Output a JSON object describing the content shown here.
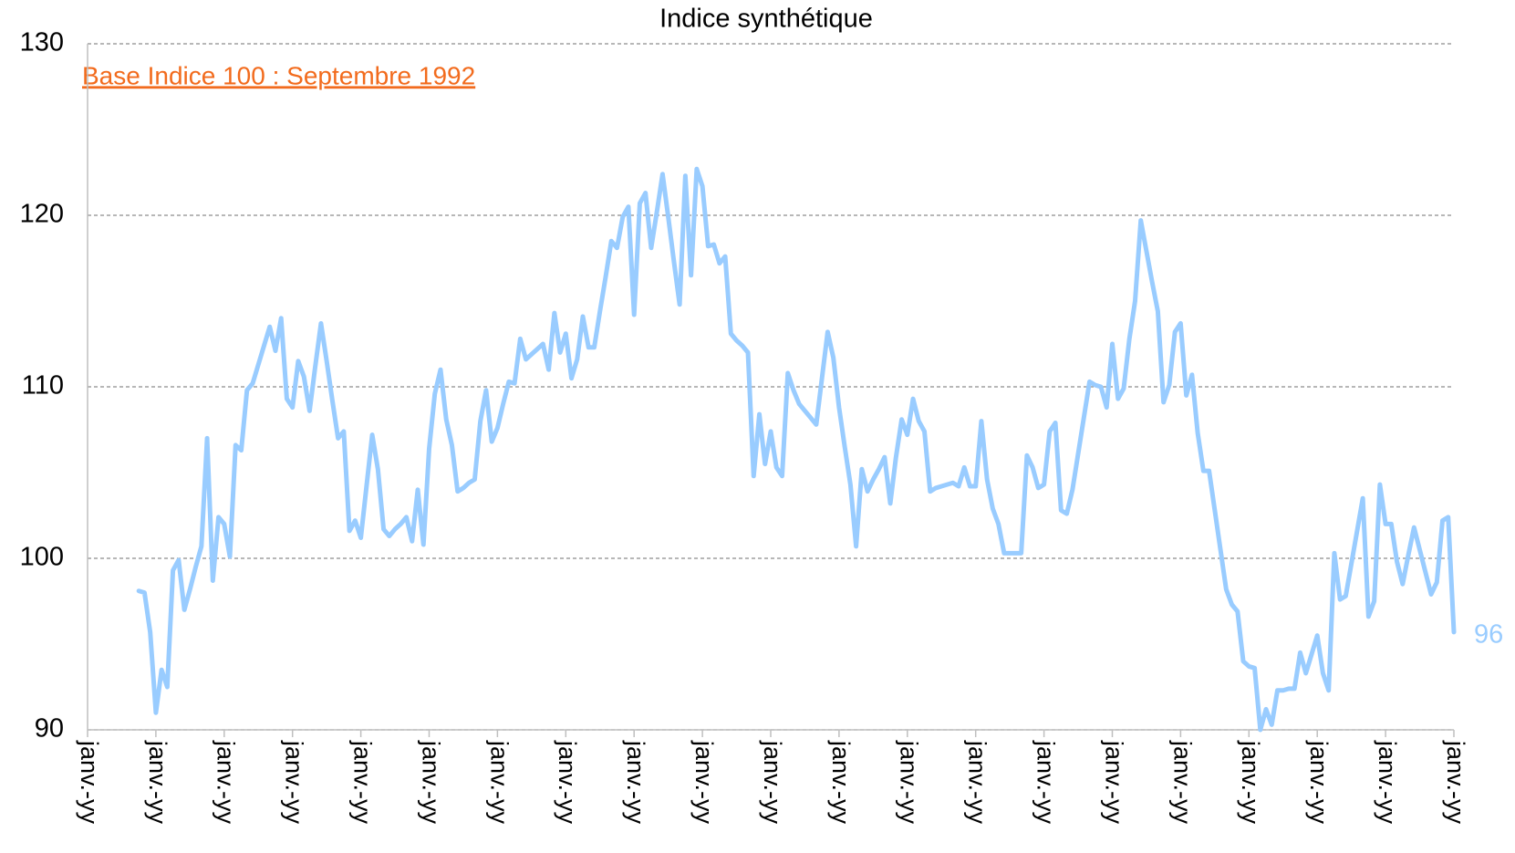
{
  "chart_data": {
    "type": "line",
    "title": "Indice synthétique",
    "annotation": "Base Indice 100 : Septembre 1992",
    "annotation_color": "#f26b1d",
    "ylim": [
      90,
      130
    ],
    "yticks": [
      90,
      100,
      110,
      120,
      130
    ],
    "grid": true,
    "categories": [
      "janv.-yy",
      null,
      null,
      null,
      null,
      null,
      null,
      null,
      null,
      null,
      null,
      null,
      "janv.-yy",
      null,
      null,
      null,
      null,
      null,
      null,
      null,
      null,
      null,
      null,
      null,
      "janv.-yy",
      null,
      null,
      null,
      null,
      null,
      null,
      null,
      null,
      null,
      null,
      null,
      "janv.-yy",
      null,
      null,
      null,
      null,
      null,
      null,
      null,
      null,
      null,
      null,
      null,
      "janv.-yy",
      null,
      null,
      null,
      null,
      null,
      null,
      null,
      null,
      null,
      null,
      null,
      "janv.-yy",
      null,
      null,
      null,
      null,
      null,
      null,
      null,
      null,
      null,
      null,
      null,
      "janv.-yy",
      null,
      null,
      null,
      null,
      null,
      null,
      null,
      null,
      null,
      null,
      null,
      "janv.-yy",
      null,
      null,
      null,
      null,
      null,
      null,
      null,
      null,
      null,
      null,
      null,
      "janv.-yy",
      null,
      null,
      null,
      null,
      null,
      null,
      null,
      null,
      null,
      null,
      null,
      "janv.-yy",
      null,
      null,
      null,
      null,
      null,
      null,
      null,
      null,
      null,
      null,
      null,
      "janv.-yy",
      null,
      null,
      null,
      null,
      null,
      null,
      null,
      null,
      null,
      null,
      null,
      "janv.-yy",
      null,
      null,
      null,
      null,
      null,
      null,
      null,
      null,
      null,
      null,
      null,
      "janv.-yy",
      null,
      null,
      null,
      null,
      null,
      null,
      null,
      null,
      null,
      null,
      null,
      "janv.-yy",
      null,
      null,
      null,
      null,
      null,
      null,
      null,
      null,
      null,
      null,
      null,
      "janv.-yy",
      null,
      null,
      null,
      null,
      null,
      null,
      null,
      null,
      null,
      null,
      null,
      "janv.-yy",
      null,
      null,
      null,
      null,
      null,
      null,
      null,
      null,
      null,
      null,
      null,
      "janv.-yy",
      null,
      null,
      null,
      null,
      null,
      null,
      null,
      null,
      null,
      null,
      null,
      "janv.-yy",
      null,
      null,
      null,
      null,
      null,
      null,
      null,
      null,
      null,
      null,
      null,
      "janv.-yy",
      null,
      null,
      null,
      null,
      null,
      null,
      null,
      null,
      null,
      null,
      null,
      "janv.-yy",
      null,
      null,
      null,
      null,
      null,
      null,
      null,
      null,
      null,
      null,
      null,
      "janv.-yy"
    ],
    "series": [
      {
        "color": "#99ccff",
        "values": [
          null,
          null,
          null,
          null,
          null,
          null,
          null,
          null,
          null,
          98.1,
          98,
          95.7,
          91,
          93.5,
          92.5,
          99.3,
          99.9,
          97,
          98.2,
          99.5,
          100.7,
          107,
          98.7,
          102.4,
          102,
          100.1,
          106.6,
          106.3,
          109.8,
          110.2,
          111.3,
          112.4,
          113.5,
          112.1,
          114,
          109.3,
          108.8,
          111.5,
          110.6,
          108.6,
          111.2,
          113.7,
          111.5,
          109.2,
          107,
          107.4,
          101.6,
          102.2,
          101.2,
          104.2,
          107.2,
          105.2,
          101.7,
          101.3,
          101.7,
          102,
          102.4,
          101,
          104,
          100.8,
          106.4,
          109.6,
          111,
          108.1,
          106.6,
          103.9,
          104.1,
          104.4,
          104.6,
          108,
          109.8,
          106.8,
          107.6,
          109,
          110.3,
          110.2,
          112.8,
          111.6,
          111.9,
          112.2,
          112.5,
          111,
          114.3,
          112,
          113.1,
          110.5,
          111.6,
          114.1,
          112.3,
          112.3,
          114.4,
          116.4,
          118.5,
          118.1,
          119.9,
          120.5,
          114.2,
          120.7,
          121.3,
          118.1,
          120.2,
          122.4,
          119.9,
          117.3,
          114.8,
          122.3,
          116.5,
          122.7,
          121.7,
          118.2,
          118.3,
          117.2,
          117.6,
          113.1,
          112.7,
          112.4,
          112,
          104.8,
          108.4,
          105.5,
          107.4,
          105.3,
          104.8,
          110.8,
          109.8,
          109,
          108.6,
          108.2,
          107.8,
          110.5,
          113.2,
          111.7,
          108.8,
          106.5,
          104.3,
          100.7,
          105.2,
          103.9,
          104.6,
          105.2,
          105.9,
          103.2,
          105.9,
          108.1,
          107.2,
          109.3,
          108,
          107.4,
          103.9,
          104.1,
          104.2,
          104.3,
          104.4,
          104.2,
          105.3,
          104.2,
          104.2,
          108,
          104.6,
          102.9,
          102,
          100.3,
          100.3,
          100.3,
          100.3,
          106,
          105.3,
          104.1,
          104.3,
          107.4,
          107.9,
          102.8,
          102.6,
          104,
          106.1,
          108.2,
          110.3,
          110.1,
          110,
          108.8,
          112.5,
          109.3,
          109.9,
          112.8,
          115,
          119.7,
          117.9,
          116.1,
          114.4,
          109.1,
          110.1,
          113.2,
          113.7,
          109.5,
          110.7,
          107.3,
          105.1,
          105.1,
          102.8,
          100.5,
          98.2,
          97.3,
          96.9,
          94,
          93.7,
          93.6,
          90,
          91.2,
          90.3,
          92.3,
          92.3,
          92.4,
          92.4,
          94.5,
          93.3,
          94.4,
          95.5,
          93.3,
          92.3,
          100.3,
          97.6,
          97.8,
          99.7,
          101.6,
          103.5,
          96.6,
          97.5,
          104.3,
          102,
          102,
          99.8,
          98.5,
          100.2,
          101.8,
          100.5,
          99.2,
          97.9,
          98.6,
          102.2,
          102.4,
          95.7
        ],
        "value_labels": [
          null,
          null,
          null,
          null,
          null,
          null,
          null,
          null,
          null,
          null,
          null,
          null,
          null,
          null,
          null,
          null,
          null,
          null,
          null,
          null,
          null,
          null,
          null,
          null,
          null,
          null,
          null,
          null,
          null,
          null,
          null,
          null,
          null,
          null,
          null,
          null,
          null,
          null,
          null,
          null,
          null,
          null,
          null,
          null,
          null,
          null,
          null,
          null,
          null,
          null,
          null,
          null,
          null,
          null,
          null,
          null,
          null,
          null,
          null,
          null,
          null,
          null,
          null,
          null,
          null,
          null,
          null,
          null,
          null,
          null,
          null,
          null,
          null,
          null,
          null,
          null,
          null,
          null,
          null,
          null,
          null,
          null,
          null,
          null,
          null,
          null,
          null,
          null,
          null,
          null,
          null,
          null,
          null,
          null,
          null,
          null,
          null,
          null,
          null,
          null,
          null,
          null,
          null,
          null,
          null,
          null,
          null,
          null,
          null,
          null,
          null,
          null,
          null,
          null,
          null,
          null,
          null,
          null,
          null,
          null,
          null,
          null,
          null,
          null,
          null,
          null,
          null,
          null,
          null,
          null,
          null,
          null,
          null,
          null,
          null,
          null,
          null,
          null,
          null,
          null,
          null,
          null,
          null,
          null,
          null,
          null,
          null,
          null,
          null,
          null,
          null,
          null,
          null,
          null,
          null,
          null,
          null,
          null,
          null,
          null,
          null,
          null,
          null,
          null,
          null,
          null,
          null,
          null,
          null,
          null,
          null,
          null,
          null,
          null,
          null,
          null,
          null,
          null,
          null,
          null,
          null,
          null,
          null,
          null,
          null,
          null,
          null,
          null,
          null,
          null,
          null,
          null,
          null,
          null,
          null,
          null,
          null,
          null,
          null,
          null,
          null,
          null,
          null,
          null,
          null,
          null,
          null,
          null,
          null,
          null,
          null,
          null,
          null,
          null,
          null,
          null,
          null,
          null,
          null,
          null,
          null,
          null,
          null,
          null,
          null,
          null,
          null,
          null,
          null,
          null,
          null,
          null,
          null,
          null,
          null,
          null,
          null,
          null,
          null,
          null,
          "96"
        ]
      }
    ]
  }
}
